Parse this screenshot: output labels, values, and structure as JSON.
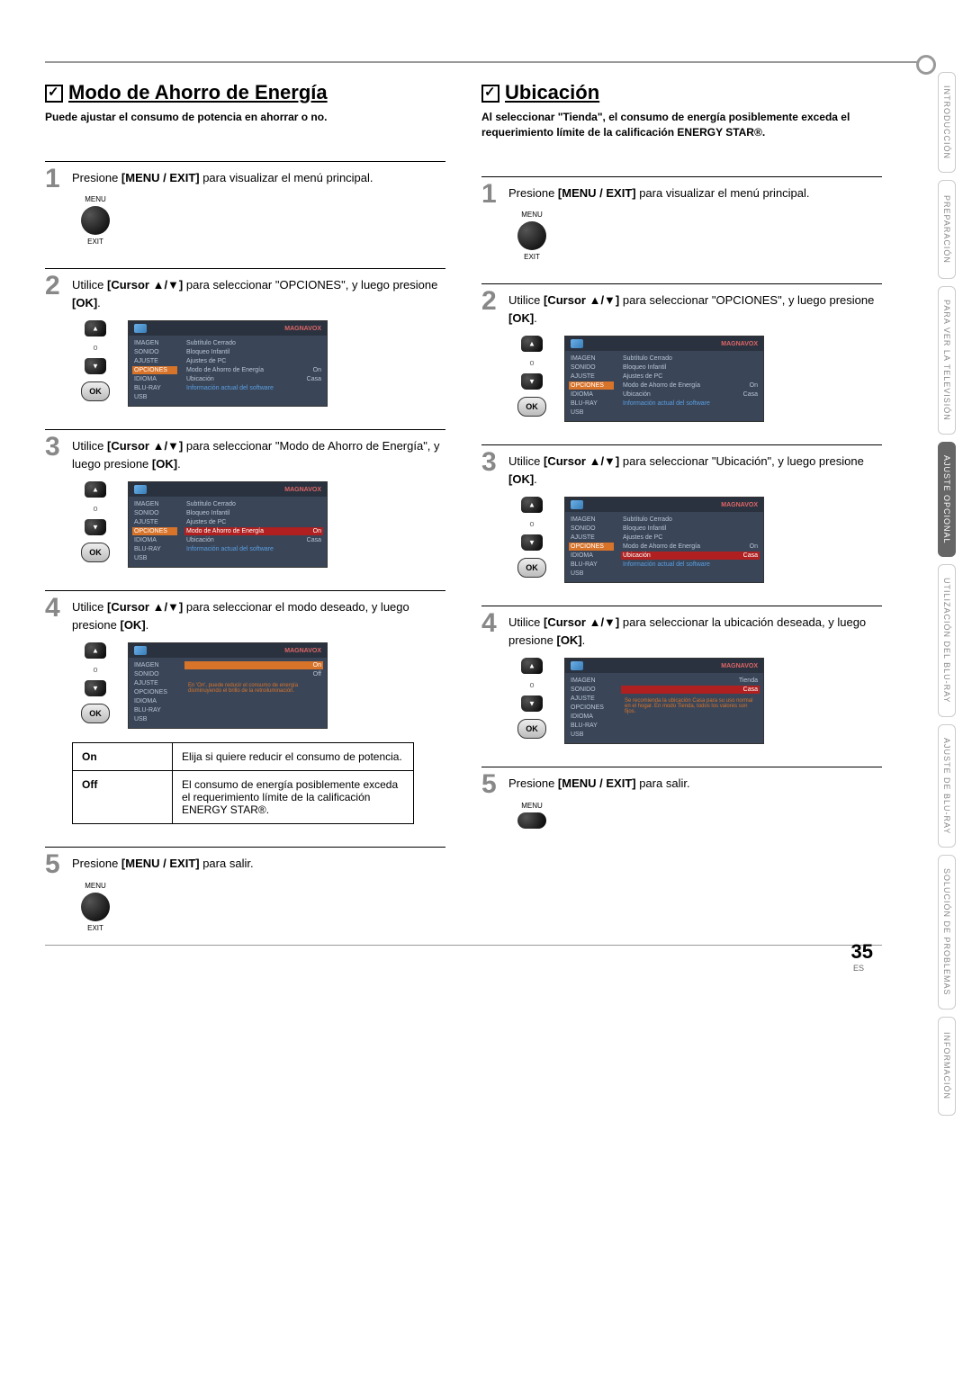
{
  "page": {
    "number": "35",
    "lang": "ES"
  },
  "tabs": [
    "INTRODUCCIÓN",
    "PREPARACIÓN",
    "PARA VER LA TELEVISIÓN",
    "AJUSTE OPCIONAL",
    "UTILIZACIÓN DEL BLU-RAY",
    "AJUSTE DE BLU-RAY",
    "SOLUCIÓN DE PROBLEMAS",
    "INFORMACIÓN"
  ],
  "tab_active_index": 3,
  "tv_brand": "MAGNAVOX",
  "menu_label_top": "MENU",
  "menu_label_bottom": "EXIT",
  "dpad_mid": "o",
  "ok_label": "OK",
  "tv_side_items": [
    "IMAGEN",
    "SONIDO",
    "AJUSTE",
    "OPCIONES",
    "IDIOMA",
    "BLU-RAY",
    "USB"
  ],
  "tv_main_items": [
    {
      "l": "Subtítulo Cerrado",
      "r": ""
    },
    {
      "l": "Bloqueo Infantil",
      "r": ""
    },
    {
      "l": "Ajustes de PC",
      "r": ""
    },
    {
      "l": "Modo de Ahorro de Energía",
      "r": "On"
    },
    {
      "l": "Ubicación",
      "r": "Casa"
    },
    {
      "l": "Información actual del software",
      "r": ""
    }
  ],
  "tv_onoff_items": [
    {
      "l": "On",
      "r": ""
    },
    {
      "l": "Off",
      "r": ""
    }
  ],
  "tv_onoff_hint": "En 'On', puede reducir el consumo de energía disminuyendo el brillo de la retroiluminación.",
  "tv_loc_items": [
    {
      "l": "Tienda",
      "r": ""
    },
    {
      "l": "Casa",
      "r": ""
    }
  ],
  "tv_loc_hint": "Se recomienda la ubicación Casa para su uso normal en el hogar. En modo Tienda, todos los valores son fijos.",
  "left": {
    "title": "Modo de Ahorro de Energía",
    "subtitle": "Puede ajustar el consumo de potencia en ahorrar o no.",
    "step1": "Presione [MENU / EXIT] para visualizar el menú principal.",
    "step2": "Utilice [Cursor ▲/▼] para seleccionar \"OPCIONES\", y luego presione [OK].",
    "step3": "Utilice [Cursor ▲/▼] para seleccionar \"Modo de Ahorro de Energía\", y luego presione [OK].",
    "step4": "Utilice [Cursor ▲/▼] para seleccionar el modo deseado, y luego presione [OK].",
    "step5": "Presione [MENU / EXIT] para salir.",
    "table": {
      "on_label": "On",
      "on_desc": "Elija si quiere reducir el consumo de potencia.",
      "off_label": "Off",
      "off_desc": "El consumo de energía posiblemente exceda el requerimiento límite de la calificación ENERGY STAR®."
    }
  },
  "right": {
    "title": "Ubicación",
    "subtitle": "Al seleccionar \"Tienda\", el consumo de energía posiblemente exceda el requerimiento límite de la calificación ENERGY STAR®.",
    "step1": "Presione [MENU / EXIT] para visualizar el menú principal.",
    "step2": "Utilice [Cursor ▲/▼] para seleccionar \"OPCIONES\", y luego presione [OK].",
    "step3": "Utilice [Cursor ▲/▼] para seleccionar \"Ubicación\", y luego presione [OK].",
    "step4": "Utilice [Cursor ▲/▼] para seleccionar la ubicación deseada, y luego presione [OK].",
    "step5": "Presione [MENU / EXIT] para salir."
  }
}
